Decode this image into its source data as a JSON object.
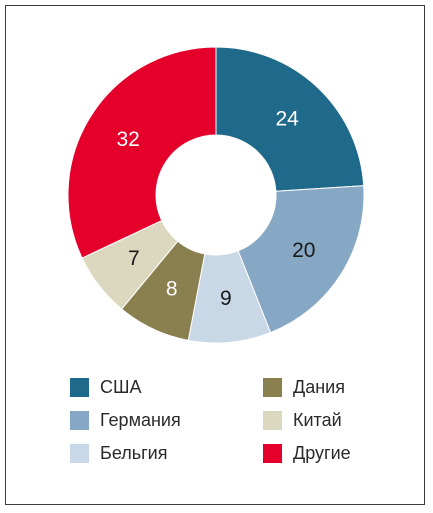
{
  "chart_data": {
    "type": "pie",
    "donut": true,
    "categories": [
      "США",
      "Германия",
      "Бельгия",
      "Дания",
      "Китай",
      "Другие"
    ],
    "values": [
      24,
      20,
      9,
      8,
      7,
      32
    ],
    "labels": [
      "24",
      "20",
      "9",
      "8",
      "7",
      "32"
    ],
    "colors": [
      "#1f6a8a",
      "#86a8c4",
      "#c9d8e6",
      "#8a7f4f",
      "#dcd8bf",
      "#e4002b"
    ],
    "label_colors": [
      "#ffffff",
      "#1a1a1a",
      "#1a1a1a",
      "#ffffff",
      "#1a1a1a",
      "#ffffff"
    ],
    "legend_placement": "bottom"
  }
}
